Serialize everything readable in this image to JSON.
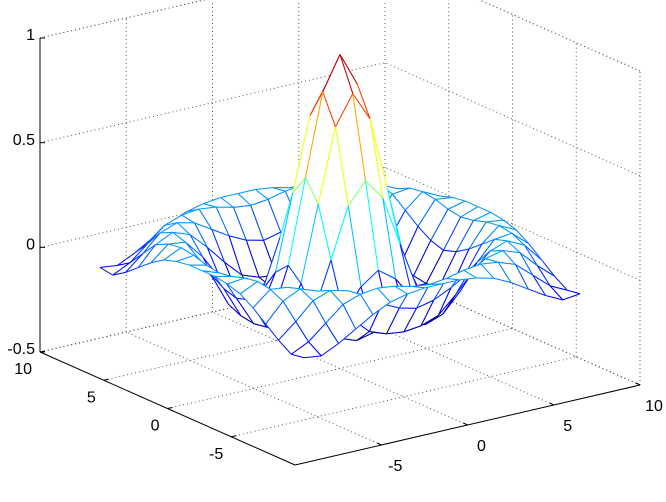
{
  "chart_data": {
    "type": "mesh",
    "colormap": "jet",
    "grid": true,
    "x": [
      -8,
      -7,
      -6,
      -5,
      -4,
      -3,
      -2,
      -1,
      0,
      1,
      2,
      3,
      4,
      5,
      6,
      7,
      8
    ],
    "y": [
      -8,
      -7,
      -6,
      -5,
      -4,
      -3,
      -2,
      -1,
      0,
      1,
      2,
      3,
      4,
      5,
      6,
      7,
      8
    ],
    "z": [
      [
        -0.08,
        -0.09,
        -0.05,
        0,
        0.05,
        0.09,
        0.11,
        0.12,
        0.12,
        0.12,
        0.11,
        0.09,
        0.05,
        0,
        -0.05,
        -0.09,
        -0.08
      ],
      [
        -0.09,
        -0.05,
        0.02,
        0.09,
        0.12,
        0.13,
        0.12,
        0.1,
        0.09,
        0.1,
        0.12,
        0.13,
        0.12,
        0.09,
        0.02,
        -0.05,
        -0.09
      ],
      [
        -0.05,
        0.02,
        0.1,
        0.13,
        0.11,
        0.06,
        0.01,
        -0.03,
        -0.05,
        -0.03,
        0.01,
        0.06,
        0.11,
        0.13,
        0.1,
        0.02,
        -0.05
      ],
      [
        0,
        0.09,
        0.13,
        0.1,
        0.02,
        -0.07,
        -0.15,
        -0.18,
        -0.19,
        -0.18,
        -0.15,
        -0.07,
        0.02,
        0.1,
        0.13,
        0.09,
        0
      ],
      [
        0.05,
        0.12,
        0.11,
        0.02,
        -0.1,
        -0.19,
        -0.22,
        -0.2,
        -0.19,
        -0.2,
        -0.22,
        -0.19,
        -0.1,
        0.02,
        0.11,
        0.12,
        0.05
      ],
      [
        0.09,
        0.13,
        0.06,
        -0.07,
        -0.19,
        -0.21,
        -0.12,
        -0.01,
        0.05,
        -0.01,
        -0.12,
        -0.21,
        -0.19,
        -0.07,
        0.06,
        0.13,
        0.09
      ],
      [
        0.11,
        0.12,
        0.01,
        -0.15,
        -0.22,
        -0.12,
        0.11,
        0.35,
        0.45,
        0.35,
        0.11,
        -0.12,
        -0.22,
        -0.15,
        0.01,
        0.12,
        0.11
      ],
      [
        0.12,
        0.1,
        -0.03,
        -0.18,
        -0.2,
        -0.01,
        0.35,
        0.7,
        0.84,
        0.7,
        0.35,
        -0.01,
        -0.2,
        -0.18,
        -0.03,
        0.1,
        0.12
      ],
      [
        0.12,
        0.09,
        -0.05,
        -0.19,
        -0.19,
        0.05,
        0.45,
        0.84,
        1,
        0.84,
        0.45,
        0.05,
        -0.19,
        -0.19,
        -0.05,
        0.09,
        0.12
      ],
      [
        0.12,
        0.1,
        -0.03,
        -0.18,
        -0.2,
        -0.01,
        0.35,
        0.7,
        0.84,
        0.7,
        0.35,
        -0.01,
        -0.2,
        -0.18,
        -0.03,
        0.1,
        0.12
      ],
      [
        0.11,
        0.12,
        0.01,
        -0.15,
        -0.22,
        -0.12,
        0.11,
        0.35,
        0.45,
        0.35,
        0.11,
        -0.12,
        -0.22,
        -0.15,
        0.01,
        0.12,
        0.11
      ],
      [
        0.09,
        0.13,
        0.06,
        -0.07,
        -0.19,
        -0.21,
        -0.12,
        -0.01,
        0.05,
        -0.01,
        -0.12,
        -0.21,
        -0.19,
        -0.07,
        0.06,
        0.13,
        0.09
      ],
      [
        0.05,
        0.12,
        0.11,
        0.02,
        -0.1,
        -0.19,
        -0.22,
        -0.2,
        -0.19,
        -0.2,
        -0.22,
        -0.19,
        -0.1,
        0.02,
        0.11,
        0.12,
        0.05
      ],
      [
        0,
        0.09,
        0.13,
        0.1,
        0.02,
        -0.07,
        -0.15,
        -0.18,
        -0.19,
        -0.18,
        -0.15,
        -0.07,
        0.02,
        0.1,
        0.13,
        0.09,
        0
      ],
      [
        -0.05,
        0.02,
        0.1,
        0.13,
        0.11,
        0.06,
        0.01,
        -0.03,
        -0.05,
        -0.03,
        0.01,
        0.06,
        0.11,
        0.13,
        0.1,
        0.02,
        -0.05
      ],
      [
        -0.09,
        -0.05,
        0.02,
        0.09,
        0.12,
        0.13,
        0.12,
        0.1,
        0.09,
        0.1,
        0.12,
        0.13,
        0.12,
        0.09,
        0.02,
        -0.05,
        -0.09
      ],
      [
        -0.08,
        -0.09,
        -0.05,
        0,
        0.05,
        0.09,
        0.11,
        0.12,
        0.12,
        0.12,
        0.11,
        0.09,
        0.05,
        0,
        -0.05,
        -0.09,
        -0.08
      ]
    ],
    "xlim": [
      -10,
      10
    ],
    "ylim": [
      -10,
      10
    ],
    "zlim": [
      -0.5,
      1
    ],
    "xticks": [
      -5,
      0,
      5,
      10
    ],
    "yticks": [
      -5,
      0,
      5,
      10
    ],
    "zticks": [
      -0.5,
      0,
      0.5,
      1
    ]
  }
}
